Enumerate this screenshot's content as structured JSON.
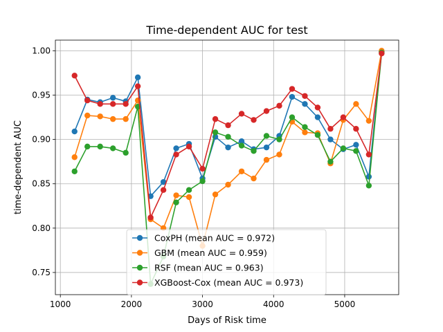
{
  "chart_data": {
    "type": "line",
    "title": "Time-dependent AUC for test",
    "xlabel": "Days of Risk time",
    "ylabel": "time-dependent AUC",
    "xlim": [
      930,
      5760
    ],
    "ylim": [
      0.725,
      1.012
    ],
    "xticks": [
      1000,
      2000,
      3000,
      4000,
      5000
    ],
    "yticks": [
      0.75,
      0.8,
      0.85,
      0.9,
      0.95,
      1.0
    ],
    "xtick_labels": [
      "1000",
      "2000",
      "3000",
      "4000",
      "5000"
    ],
    "ytick_labels": [
      "0.75",
      "0.80",
      "0.85",
      "0.90",
      "0.95",
      "1.00"
    ],
    "grid": true,
    "legend_position": "lower-center",
    "x": [
      1200,
      1380,
      1560,
      1740,
      1920,
      2090,
      2270,
      2450,
      2630,
      2810,
      3000,
      3180,
      3360,
      3550,
      3720,
      3900,
      4080,
      4260,
      4440,
      4620,
      4800,
      4980,
      5160,
      5340,
      5520
    ],
    "series": [
      {
        "name": "CoxPH (mean AUC = 0.972)",
        "color": "#1f77b4",
        "values": [
          0.909,
          0.945,
          0.942,
          0.947,
          0.943,
          0.97,
          0.836,
          0.852,
          0.89,
          0.895,
          0.856,
          0.903,
          0.891,
          0.898,
          0.889,
          0.891,
          0.904,
          0.948,
          0.94,
          0.925,
          0.9,
          0.889,
          0.894,
          0.858,
          0.999
        ]
      },
      {
        "name": "GBM (mean AUC = 0.959)",
        "color": "#ff7f0e",
        "values": [
          0.88,
          0.927,
          0.926,
          0.923,
          0.923,
          0.944,
          0.81,
          0.8,
          0.837,
          0.835,
          0.78,
          0.838,
          0.849,
          0.864,
          0.856,
          0.877,
          0.883,
          0.92,
          0.908,
          0.907,
          0.873,
          0.922,
          0.94,
          0.921,
          1.0
        ]
      },
      {
        "name": "RSF (mean AUC = 0.963)",
        "color": "#2ca02c",
        "values": [
          0.864,
          0.892,
          0.892,
          0.89,
          0.885,
          0.937,
          0.737,
          0.768,
          0.829,
          0.843,
          0.853,
          0.908,
          0.903,
          0.893,
          0.887,
          0.904,
          0.9,
          0.925,
          0.914,
          0.905,
          0.875,
          0.89,
          0.887,
          0.848,
          0.998
        ]
      },
      {
        "name": "XGBoost-Cox (mean AUC = 0.973)",
        "color": "#d62728",
        "values": [
          0.972,
          0.944,
          0.94,
          0.94,
          0.94,
          0.96,
          0.812,
          0.843,
          0.883,
          0.892,
          0.867,
          0.923,
          0.916,
          0.929,
          0.922,
          0.932,
          0.938,
          0.957,
          0.949,
          0.936,
          0.912,
          0.925,
          0.912,
          0.883,
          0.997
        ]
      }
    ]
  }
}
